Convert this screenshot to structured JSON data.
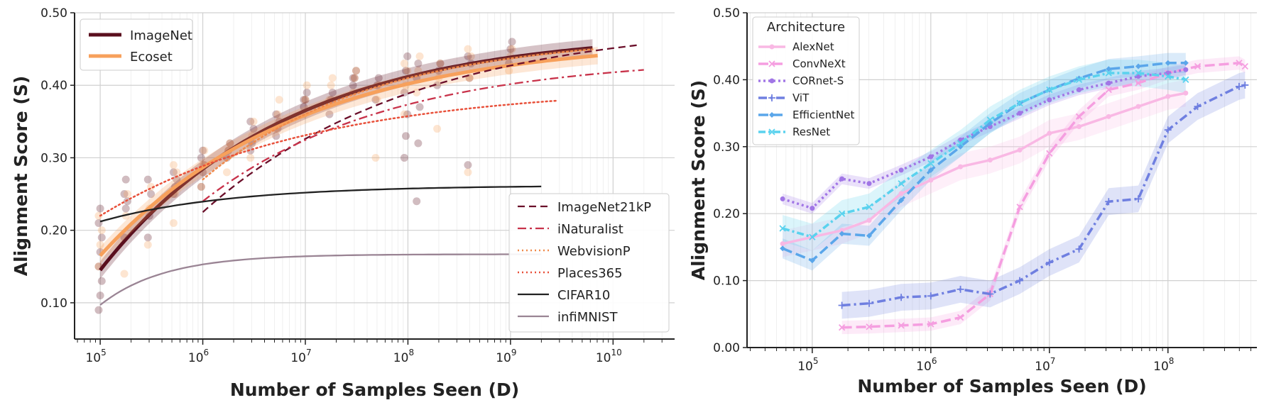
{
  "chart_data": [
    {
      "type": "line",
      "xscale": "log",
      "xlabel": "Number of Samples Seen (D)",
      "ylabel": "Alignment Score (S)",
      "ylim": [
        0.05,
        0.5
      ],
      "xlim_log10": [
        4.75,
        10.6
      ],
      "yticks": [
        "0.10",
        "0.20",
        "0.30",
        "0.40",
        "0.50"
      ],
      "yticks_values": [
        0.1,
        0.2,
        0.3,
        0.4,
        0.5
      ],
      "xticks_base": "10",
      "xticks_exp": [
        "5",
        "6",
        "7",
        "8",
        "9",
        "10"
      ],
      "grid": true,
      "legend_top": [
        "ImageNet",
        "Ecoset"
      ],
      "legend_bottom": [
        "ImageNet21kP",
        "iNaturalist",
        "WebvisionP",
        "Places365",
        "CIFAR10",
        "infiMNIST"
      ],
      "series": [
        {
          "name": "ImageNet",
          "color": "#5a0f1e",
          "style": "solid-thick",
          "fit": {
            "a": 0.475,
            "b": 0.33,
            "c": 0.55,
            "x0": 5.0
          },
          "range": [
            5.0,
            9.8
          ],
          "band": 0.012
        },
        {
          "name": "Ecoset",
          "color": "#f7a05b",
          "style": "solid-thick",
          "fit": {
            "a": 0.465,
            "b": 0.3,
            "c": 0.52,
            "x0": 5.0
          },
          "range": [
            5.0,
            9.85
          ],
          "band": 0.012
        },
        {
          "name": "ImageNet21kP",
          "color": "#6b0f2a",
          "style": "dashed",
          "fit": {
            "a": 0.49,
            "b": 0.265,
            "c": 0.48,
            "x0": 6.0
          },
          "range": [
            6.0,
            10.25
          ]
        },
        {
          "name": "iNaturalist",
          "color": "#c8324a",
          "style": "dashdot",
          "fit": {
            "a": 0.44,
            "b": 0.2,
            "c": 0.55,
            "x0": 6.0
          },
          "range": [
            6.0,
            10.3
          ]
        },
        {
          "name": "WebvisionP",
          "color": "#f08a4b",
          "style": "dotted",
          "fit": {
            "a": 0.47,
            "b": 0.2,
            "c": 0.6,
            "x0": 6.0
          },
          "range": [
            6.0,
            9.8
          ]
        },
        {
          "name": "Places365",
          "color": "#e8503a",
          "style": "dotted",
          "fit": {
            "a": 0.4,
            "b": 0.18,
            "c": 0.48,
            "x0": 5.0
          },
          "range": [
            5.0,
            9.45
          ]
        },
        {
          "name": "CIFAR10",
          "color": "#222222",
          "style": "solid",
          "fit": {
            "a": 0.262,
            "b": 0.05,
            "c": 0.8,
            "x0": 5.0
          },
          "range": [
            5.0,
            9.3
          ]
        },
        {
          "name": "infiMNIST",
          "color": "#9a8494",
          "style": "solid",
          "fit": {
            "a": 0.167,
            "b": 0.07,
            "c": 1.6,
            "x0": 5.0
          },
          "range": [
            5.0,
            9.3
          ]
        }
      ],
      "scatter_x": [
        5.0,
        5.25,
        5.48,
        5.73,
        6.0,
        6.25,
        6.48,
        6.73,
        7.0,
        7.25,
        7.48,
        7.7,
        7.98,
        8.1,
        8.3,
        8.6,
        9.0
      ],
      "scatter_groups": [
        {
          "name": "ImageNet",
          "color": "#5a0f1e",
          "opacity": 0.28,
          "y": [
            [
              0.09,
              0.11,
              0.13,
              0.15,
              0.17,
              0.19,
              0.21,
              0.23
            ],
            [
              0.19,
              0.23,
              0.24,
              0.25,
              0.27
            ],
            [
              0.19,
              0.22,
              0.25,
              0.27
            ],
            [
              0.25,
              0.26,
              0.27,
              0.28
            ],
            [
              0.26,
              0.28,
              0.29,
              0.3,
              0.31
            ],
            [
              0.3,
              0.31,
              0.32
            ],
            [
              0.31,
              0.32,
              0.34,
              0.35
            ],
            [
              0.33,
              0.34,
              0.35,
              0.36
            ],
            [
              0.37,
              0.38,
              0.39,
              0.38
            ],
            [
              0.36,
              0.38,
              0.39
            ],
            [
              0.4,
              0.41,
              0.42,
              0.41
            ],
            [
              0.38,
              0.4,
              0.41
            ],
            [
              0.3,
              0.33,
              0.36,
              0.39,
              0.42,
              0.44
            ],
            [
              0.24,
              0.32,
              0.37,
              0.41,
              0.43
            ],
            [
              0.4,
              0.42,
              0.43
            ],
            [
              0.29,
              0.41,
              0.43,
              0.44
            ],
            [
              0.43,
              0.45,
              0.46
            ]
          ]
        },
        {
          "name": "Ecoset",
          "color": "#f7a05b",
          "opacity": 0.28,
          "y": [
            [
              0.15,
              0.18,
              0.2,
              0.22
            ],
            [
              0.14,
              0.22,
              0.25
            ],
            [
              0.18,
              0.23,
              0.26
            ],
            [
              0.21,
              0.25,
              0.28,
              0.29
            ],
            [
              0.26,
              0.29,
              0.31
            ],
            [
              0.28,
              0.31,
              0.32
            ],
            [
              0.3,
              0.33,
              0.35
            ],
            [
              0.34,
              0.36,
              0.38
            ],
            [
              0.36,
              0.38,
              0.4
            ],
            [
              0.38,
              0.4,
              0.41
            ],
            [
              0.39,
              0.41,
              0.42
            ],
            [
              0.3,
              0.38,
              0.4
            ],
            [
              0.36,
              0.4,
              0.42,
              0.43
            ],
            [
              0.39,
              0.42,
              0.44
            ],
            [
              0.34,
              0.41,
              0.43
            ],
            [
              0.28,
              0.41,
              0.44,
              0.45
            ],
            [
              0.42,
              0.44,
              0.45
            ]
          ]
        }
      ]
    },
    {
      "type": "line",
      "xscale": "log",
      "xlabel": "Number of Samples Seen (D)",
      "ylabel": "Alignment Score (S)",
      "ylim": [
        0.0,
        0.5
      ],
      "xlim_log10": [
        4.45,
        8.75
      ],
      "yticks": [
        "0.00",
        "0.10",
        "0.20",
        "0.30",
        "0.40",
        "0.50"
      ],
      "yticks_values": [
        0.0,
        0.1,
        0.2,
        0.3,
        0.4,
        0.5
      ],
      "xticks_base": "10",
      "xticks_exp": [
        "5",
        "6",
        "7",
        "8"
      ],
      "grid": true,
      "legend_title": "Architecture",
      "series": [
        {
          "name": "AlexNet",
          "color": "#f9b8e4",
          "marker": "o",
          "x": [
            4.75,
            5.0,
            5.25,
            5.48,
            5.75,
            6.0,
            6.25,
            6.5,
            6.75,
            7.0,
            7.25,
            7.5,
            7.75,
            8.0,
            8.15
          ],
          "y": [
            0.155,
            0.165,
            0.175,
            0.19,
            0.23,
            0.25,
            0.27,
            0.28,
            0.295,
            0.32,
            0.33,
            0.345,
            0.36,
            0.375,
            0.38
          ],
          "band": 0.02
        },
        {
          "name": "ConvNeXt",
          "color": "#f59ee0",
          "marker": "x",
          "x": [
            5.25,
            5.48,
            5.75,
            6.0,
            6.25,
            6.5,
            6.75,
            7.0,
            7.25,
            7.5,
            7.75,
            8.0,
            8.25,
            8.6,
            8.65
          ],
          "y": [
            0.03,
            0.031,
            0.033,
            0.035,
            0.045,
            0.08,
            0.21,
            0.29,
            0.345,
            0.385,
            0.395,
            0.41,
            0.42,
            0.425,
            0.42
          ],
          "band": 0.01
        },
        {
          "name": "CORnet-S",
          "color": "#a176e6",
          "marker": "o",
          "x": [
            4.75,
            5.0,
            5.25,
            5.48,
            5.75,
            6.0,
            6.25,
            6.5,
            6.75,
            7.0,
            7.25,
            7.5,
            7.75,
            8.0,
            8.15
          ],
          "y": [
            0.222,
            0.208,
            0.252,
            0.245,
            0.265,
            0.285,
            0.31,
            0.33,
            0.35,
            0.37,
            0.385,
            0.395,
            0.405,
            0.41,
            0.415
          ],
          "band": 0.008
        },
        {
          "name": "ViT",
          "color": "#6f7fe0",
          "marker": "+",
          "x": [
            5.25,
            5.48,
            5.75,
            6.0,
            6.25,
            6.5,
            6.75,
            7.0,
            7.25,
            7.5,
            7.75,
            8.0,
            8.25,
            8.6,
            8.65
          ],
          "y": [
            0.063,
            0.066,
            0.075,
            0.077,
            0.087,
            0.08,
            0.1,
            0.127,
            0.147,
            0.218,
            0.222,
            0.325,
            0.36,
            0.39,
            0.392
          ],
          "band": 0.02
        },
        {
          "name": "EfficientNet",
          "color": "#5aa6ea",
          "marker": "D",
          "x": [
            4.75,
            5.0,
            5.25,
            5.48,
            5.75,
            6.0,
            6.25,
            6.5,
            6.75,
            7.0,
            7.25,
            7.5,
            7.75,
            8.0,
            8.15
          ],
          "y": [
            0.148,
            0.13,
            0.17,
            0.167,
            0.22,
            0.265,
            0.3,
            0.335,
            0.365,
            0.385,
            0.402,
            0.416,
            0.42,
            0.425,
            0.425
          ],
          "band": 0.015
        },
        {
          "name": "ResNet",
          "color": "#5ad2ee",
          "marker": "x",
          "x": [
            4.75,
            5.0,
            5.25,
            5.48,
            5.75,
            6.0,
            6.25,
            6.5,
            6.75,
            7.0,
            7.25,
            7.5,
            7.75,
            8.0,
            8.15
          ],
          "y": [
            0.178,
            0.165,
            0.2,
            0.21,
            0.245,
            0.275,
            0.305,
            0.34,
            0.365,
            0.385,
            0.4,
            0.41,
            0.41,
            0.405,
            0.4
          ],
          "band": 0.02
        }
      ]
    }
  ]
}
